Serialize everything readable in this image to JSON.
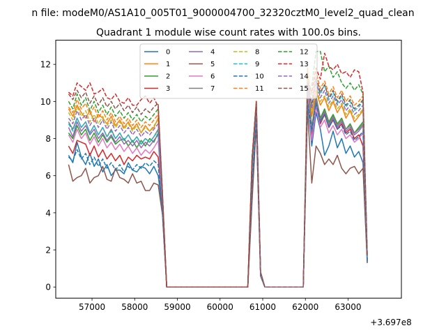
{
  "figure": {
    "suptitle": "n file: modeM0/AS1A10_005T01_9000004700_32320cztM0_level2_quad_clean",
    "title": "Quadrant 1 module wise count rates with 100.0s bins.",
    "offset_text": "+3.697e8"
  },
  "chart_data": {
    "type": "line",
    "title": "Quadrant 1 module wise count rates with 100.0s bins.",
    "xlabel": "",
    "ylabel": "",
    "x_offset": "+3.697e8",
    "xlim": [
      56150,
      64250
    ],
    "ylim": [
      -0.6,
      13.3
    ],
    "xticks": [
      57000,
      58000,
      59000,
      60000,
      61000,
      62000,
      63000
    ],
    "yticks": [
      0,
      2,
      4,
      6,
      8,
      10,
      12
    ],
    "grid": false,
    "legend": {
      "placement": "top-center",
      "columns": 4
    },
    "x": [
      56450,
      56550,
      56650,
      56750,
      56850,
      56950,
      57050,
      57150,
      57250,
      57350,
      57450,
      57550,
      57650,
      57750,
      57850,
      57950,
      58050,
      58150,
      58250,
      58350,
      58450,
      58550,
      58650,
      58750,
      58850,
      58950,
      59050,
      59150,
      59250,
      59350,
      59450,
      59550,
      59650,
      59750,
      59850,
      59950,
      60050,
      60150,
      60250,
      60350,
      60450,
      60550,
      60650,
      60750,
      60850,
      60950,
      61050,
      61150,
      61250,
      61350,
      61450,
      61550,
      61650,
      61750,
      61850,
      61950,
      62050,
      62150,
      62250,
      62350,
      62450,
      62550,
      62650,
      62750,
      62850,
      62950,
      63050,
      63150,
      63250,
      63350,
      63450
    ],
    "series": [
      {
        "name": "0",
        "color": "#1f77b4",
        "style": "solid",
        "values": [
          7.1,
          6.7,
          7.8,
          7.0,
          6.6,
          7.2,
          6.5,
          6.9,
          6.2,
          6.6,
          6.0,
          6.3,
          6.3,
          6.1,
          6.7,
          6.3,
          6.2,
          6.5,
          6.4,
          6.1,
          6.5,
          6.0,
          4.2,
          0,
          0,
          0,
          0,
          0,
          0,
          0,
          0,
          0,
          0,
          0,
          0,
          0,
          0,
          0,
          0,
          0,
          0,
          0,
          0,
          5.2,
          9.1,
          0.6,
          0,
          0,
          0,
          0,
          0,
          0,
          0,
          0,
          0,
          0,
          10.2,
          7.6,
          9.4,
          8.5,
          7.1,
          7.6,
          8.4,
          7.5,
          8.0,
          7.2,
          7.6,
          7.0,
          7.3,
          6.7,
          1.3
        ]
      },
      {
        "name": "1",
        "color": "#ff7f0e",
        "style": "solid",
        "values": [
          9.6,
          9.2,
          9.8,
          9.4,
          9.1,
          9.5,
          8.9,
          9.3,
          9.1,
          8.8,
          9.2,
          8.7,
          9.0,
          8.6,
          8.9,
          8.5,
          8.8,
          8.3,
          8.7,
          8.4,
          8.6,
          9.1,
          5.0,
          0,
          0,
          0,
          0,
          0,
          0,
          0,
          0,
          0,
          0,
          0,
          0,
          0,
          0,
          0,
          0,
          0,
          0,
          0,
          0,
          6.8,
          10.0,
          0.8,
          0,
          0,
          0,
          0,
          0,
          0,
          0,
          0,
          0,
          0,
          11.8,
          9.2,
          10.6,
          9.8,
          10.2,
          9.5,
          10.0,
          9.4,
          9.8,
          9.1,
          9.5,
          8.9,
          9.2,
          9.5,
          1.6
        ]
      },
      {
        "name": "2",
        "color": "#2ca02c",
        "style": "solid",
        "values": [
          8.3,
          8.0,
          8.7,
          8.2,
          8.5,
          7.9,
          8.3,
          7.8,
          8.2,
          7.8,
          8.1,
          7.7,
          7.9,
          8.0,
          7.6,
          7.9,
          7.5,
          7.9,
          7.6,
          8.0,
          7.8,
          8.3,
          4.6,
          0,
          0,
          0,
          0,
          0,
          0,
          0,
          0,
          0,
          0,
          0,
          0,
          0,
          0,
          0,
          0,
          0,
          0,
          0,
          0,
          6.2,
          9.8,
          0.7,
          0,
          0,
          0,
          0,
          0,
          0,
          0,
          0,
          0,
          0,
          11.2,
          8.6,
          10.3,
          9.1,
          9.6,
          8.9,
          9.3,
          8.8,
          9.1,
          8.5,
          8.8,
          8.3,
          8.6,
          8.9,
          1.5
        ]
      },
      {
        "name": "3",
        "color": "#d62728",
        "style": "solid",
        "values": [
          7.6,
          7.2,
          7.9,
          7.8,
          7.7,
          7.1,
          7.6,
          7.0,
          7.4,
          6.9,
          7.2,
          6.8,
          7.1,
          6.6,
          7.0,
          6.8,
          7.1,
          6.9,
          7.0,
          6.9,
          7.3,
          7.0,
          4.3,
          0,
          0,
          0,
          0,
          0,
          0,
          0,
          0,
          0,
          0,
          0,
          0,
          0,
          0,
          0,
          0,
          0,
          0,
          0,
          0,
          5.8,
          9.4,
          0.7,
          0,
          0,
          0,
          0,
          0,
          0,
          0,
          0,
          0,
          0,
          10.8,
          8.2,
          10.0,
          8.8,
          9.3,
          8.6,
          9.0,
          8.5,
          8.8,
          8.3,
          8.5,
          8.0,
          8.2,
          7.6,
          1.4
        ]
      },
      {
        "name": "4",
        "color": "#9467bd",
        "style": "solid",
        "values": [
          8.6,
          8.1,
          8.9,
          8.4,
          8.7,
          8.2,
          8.5,
          8.0,
          8.3,
          7.9,
          8.2,
          7.8,
          8.1,
          7.7,
          7.9,
          7.6,
          7.9,
          7.5,
          7.8,
          7.6,
          7.9,
          8.2,
          4.5,
          0,
          0,
          0,
          0,
          0,
          0,
          0,
          0,
          0,
          0,
          0,
          0,
          0,
          0,
          0,
          0,
          0,
          0,
          0,
          0,
          6.0,
          9.6,
          0.7,
          0,
          0,
          0,
          0,
          0,
          0,
          0,
          0,
          0,
          0,
          11.0,
          8.4,
          10.1,
          8.9,
          9.4,
          8.7,
          9.1,
          8.6,
          8.9,
          8.4,
          8.6,
          8.2,
          8.4,
          8.7,
          1.5
        ]
      },
      {
        "name": "5",
        "color": "#8c564b",
        "style": "solid",
        "values": [
          6.6,
          5.7,
          5.9,
          6.0,
          6.4,
          5.6,
          5.9,
          6.0,
          6.5,
          5.8,
          5.7,
          6.4,
          5.9,
          5.8,
          5.6,
          6.1,
          5.6,
          5.7,
          5.2,
          5.2,
          5.6,
          5.5,
          3.9,
          0,
          0,
          0,
          0,
          0,
          0,
          0,
          0,
          0,
          0,
          0,
          0,
          0,
          0,
          0,
          0,
          0,
          0,
          0,
          0,
          4.6,
          8.8,
          0.6,
          0,
          0,
          0,
          0,
          0,
          0,
          0,
          0,
          0,
          0,
          9.6,
          5.6,
          7.6,
          7.2,
          6.6,
          6.9,
          6.6,
          7.1,
          6.4,
          6.1,
          6.4,
          6.5,
          6.1,
          6.4,
          1.3
        ]
      },
      {
        "name": "6",
        "color": "#e377c2",
        "style": "solid",
        "values": [
          8.2,
          7.8,
          8.5,
          8.0,
          8.3,
          7.7,
          8.1,
          7.6,
          8.0,
          7.5,
          7.8,
          7.4,
          7.7,
          7.3,
          7.6,
          7.2,
          7.5,
          7.1,
          7.4,
          7.2,
          7.5,
          7.9,
          4.4,
          0,
          0,
          0,
          0,
          0,
          0,
          0,
          0,
          0,
          0,
          0,
          0,
          0,
          0,
          0,
          0,
          0,
          0,
          0,
          0,
          5.9,
          9.5,
          0.7,
          0,
          0,
          0,
          0,
          0,
          0,
          0,
          0,
          0,
          0,
          10.6,
          7.9,
          9.7,
          8.6,
          9.0,
          8.3,
          8.7,
          8.2,
          8.5,
          8.0,
          8.2,
          7.8,
          8.0,
          8.3,
          1.4
        ]
      },
      {
        "name": "7",
        "color": "#7f7f7f",
        "style": "solid",
        "values": [
          8.9,
          8.5,
          9.1,
          8.6,
          8.9,
          8.3,
          8.7,
          8.2,
          8.6,
          8.1,
          8.5,
          8.0,
          8.3,
          7.9,
          8.2,
          7.8,
          8.1,
          7.7,
          8.0,
          7.8,
          8.1,
          8.5,
          4.6,
          0,
          0,
          0,
          0,
          0,
          0,
          0,
          0,
          0,
          0,
          0,
          0,
          0,
          0,
          0,
          0,
          0,
          0,
          0,
          0,
          6.3,
          9.7,
          0.7,
          0,
          0,
          0,
          0,
          0,
          0,
          0,
          0,
          0,
          0,
          11.1,
          8.5,
          10.3,
          9.0,
          9.5,
          8.8,
          9.2,
          8.7,
          9.0,
          8.5,
          8.7,
          8.3,
          8.5,
          8.8,
          1.5
        ]
      },
      {
        "name": "8",
        "color": "#bcbd22",
        "style": "dashed",
        "values": [
          9.4,
          9.0,
          9.7,
          9.2,
          9.5,
          8.9,
          9.3,
          8.8,
          9.2,
          8.7,
          9.0,
          8.6,
          8.9,
          8.5,
          8.8,
          8.4,
          8.7,
          8.3,
          8.6,
          8.4,
          8.7,
          9.0,
          4.8,
          0,
          0,
          0,
          0,
          0,
          0,
          0,
          0,
          0,
          0,
          0,
          0,
          0,
          0,
          0,
          0,
          0,
          0,
          0,
          0,
          6.6,
          9.9,
          0.8,
          0,
          0,
          0,
          0,
          0,
          0,
          0,
          0,
          0,
          0,
          11.4,
          9.5,
          10.8,
          10.0,
          10.3,
          9.7,
          10.1,
          9.6,
          9.9,
          9.3,
          9.6,
          9.1,
          9.3,
          9.6,
          1.6
        ]
      },
      {
        "name": "9",
        "color": "#17becf",
        "style": "dashed",
        "values": [
          8.8,
          8.4,
          9.1,
          8.6,
          8.9,
          8.3,
          8.7,
          8.2,
          8.6,
          8.1,
          8.4,
          8.0,
          8.3,
          7.9,
          8.2,
          7.8,
          8.1,
          7.7,
          8.0,
          7.8,
          8.1,
          8.4,
          4.6,
          0,
          0,
          0,
          0,
          0,
          0,
          0,
          0,
          0,
          0,
          0,
          0,
          0,
          0,
          0,
          0,
          0,
          0,
          0,
          0,
          6.4,
          9.8,
          0.7,
          0,
          0,
          0,
          0,
          0,
          0,
          0,
          0,
          0,
          0,
          11.3,
          9.8,
          11.0,
          10.4,
          10.9,
          10.1,
          10.5,
          9.9,
          10.3,
          9.7,
          10.0,
          9.5,
          9.7,
          10.0,
          1.6
        ]
      },
      {
        "name": "10",
        "color": "#1f77b4",
        "style": "dashed",
        "values": [
          7.0,
          6.8,
          7.4,
          6.9,
          7.2,
          6.6,
          7.0,
          6.5,
          6.9,
          6.4,
          6.7,
          6.3,
          6.6,
          6.2,
          6.5,
          6.3,
          6.6,
          6.4,
          6.7,
          6.5,
          6.8,
          6.6,
          4.0,
          0,
          0,
          0,
          0,
          0,
          0,
          0,
          0,
          0,
          0,
          0,
          0,
          0,
          0,
          0,
          0,
          0,
          0,
          0,
          0,
          5.4,
          9.0,
          0.6,
          0,
          0,
          0,
          0,
          0,
          0,
          0,
          0,
          0,
          0,
          10.0,
          8.4,
          9.9,
          8.9,
          9.3,
          8.6,
          9.0,
          8.5,
          8.7,
          8.2,
          8.4,
          7.9,
          8.1,
          8.4,
          1.4
        ]
      },
      {
        "name": "11",
        "color": "#ff7f0e",
        "style": "dashed",
        "values": [
          9.7,
          9.4,
          10.1,
          9.6,
          9.9,
          9.3,
          9.7,
          9.1,
          9.5,
          9.0,
          9.4,
          8.9,
          9.2,
          8.8,
          9.1,
          8.7,
          9.0,
          8.6,
          8.9,
          8.7,
          9.0,
          9.3,
          4.9,
          0,
          0,
          0,
          0,
          0,
          0,
          0,
          0,
          0,
          0,
          0,
          0,
          0,
          0,
          0,
          0,
          0,
          0,
          0,
          0,
          6.7,
          10.0,
          0.8,
          0,
          0,
          0,
          0,
          0,
          0,
          0,
          0,
          0,
          0,
          11.6,
          10.3,
          11.6,
          10.7,
          11.1,
          10.4,
          10.8,
          10.2,
          10.6,
          10.0,
          10.3,
          9.8,
          10.0,
          10.3,
          1.7
        ]
      },
      {
        "name": "12",
        "color": "#2ca02c",
        "style": "dashed",
        "values": [
          10.0,
          9.6,
          10.4,
          9.8,
          10.2,
          9.5,
          10.0,
          9.4,
          9.8,
          9.3,
          9.7,
          9.2,
          9.5,
          9.1,
          9.4,
          9.0,
          9.3,
          8.9,
          9.2,
          9.0,
          9.3,
          9.6,
          5.0,
          0,
          0,
          0,
          0,
          0,
          0,
          0,
          0,
          0,
          0,
          0,
          0,
          0,
          0,
          0,
          0,
          0,
          0,
          0,
          0,
          6.9,
          10.0,
          0.8,
          0,
          0,
          0,
          0,
          0,
          0,
          0,
          0,
          0,
          0,
          10.5,
          10.8,
          12.7,
          12.7,
          11.6,
          11.9,
          11.3,
          11.6,
          11.0,
          10.7,
          11.0,
          10.6,
          10.9,
          10.4,
          1.7
        ]
      },
      {
        "name": "13",
        "color": "#d62728",
        "style": "dashed",
        "values": [
          10.5,
          10.3,
          11.0,
          10.8,
          10.6,
          11.0,
          10.4,
          10.5,
          10.7,
          10.2,
          10.1,
          10.4,
          10.0,
          9.9,
          10.2,
          9.8,
          9.8,
          10.1,
          10.3,
          9.9,
          10.2,
          9.7,
          5.1,
          0,
          0,
          0,
          0,
          0,
          0,
          0,
          0,
          0,
          0,
          0,
          0,
          0,
          0,
          0,
          0,
          0,
          0,
          0,
          0,
          7.0,
          10.0,
          0.8,
          0,
          0,
          0,
          0,
          0,
          0,
          0,
          0,
          0,
          0,
          11.0,
          10.5,
          11.8,
          11.2,
          12.6,
          11.9,
          11.7,
          12.0,
          11.5,
          11.6,
          11.3,
          11.7,
          11.6,
          10.5,
          1.7
        ]
      },
      {
        "name": "14",
        "color": "#9467bd",
        "style": "dashed",
        "values": [
          9.1,
          8.8,
          9.5,
          9.0,
          9.3,
          8.7,
          9.1,
          8.6,
          9.0,
          8.5,
          8.9,
          8.4,
          8.7,
          8.3,
          8.6,
          8.2,
          8.5,
          8.1,
          8.4,
          8.2,
          8.5,
          8.8,
          4.7,
          0,
          0,
          0,
          0,
          0,
          0,
          0,
          0,
          0,
          0,
          0,
          0,
          0,
          0,
          0,
          0,
          0,
          0,
          0,
          0,
          6.5,
          9.8,
          0.7,
          0,
          0,
          0,
          0,
          0,
          0,
          0,
          0,
          0,
          0,
          11.0,
          9.6,
          11.1,
          10.2,
          10.6,
          9.9,
          10.3,
          9.8,
          10.1,
          9.5,
          9.8,
          9.3,
          9.5,
          9.8,
          1.6
        ]
      },
      {
        "name": "15",
        "color": "#8c564b",
        "style": "dashed",
        "values": [
          10.4,
          10.1,
          10.6,
          10.2,
          10.5,
          9.9,
          10.3,
          9.8,
          10.2,
          9.7,
          10.0,
          9.6,
          9.9,
          9.5,
          9.8,
          9.4,
          9.7,
          9.3,
          9.6,
          9.4,
          9.7,
          9.9,
          5.0,
          0,
          0,
          0,
          0,
          0,
          0,
          0,
          0,
          0,
          0,
          0,
          0,
          0,
          0,
          0,
          0,
          0,
          0,
          0,
          0,
          6.8,
          9.9,
          0.8,
          0,
          0,
          0,
          0,
          0,
          0,
          0,
          0,
          0,
          0,
          10.8,
          9.9,
          11.3,
          10.5,
          10.9,
          10.2,
          10.6,
          10.0,
          10.4,
          9.8,
          10.1,
          9.6,
          9.8,
          10.1,
          1.7
        ]
      }
    ]
  }
}
